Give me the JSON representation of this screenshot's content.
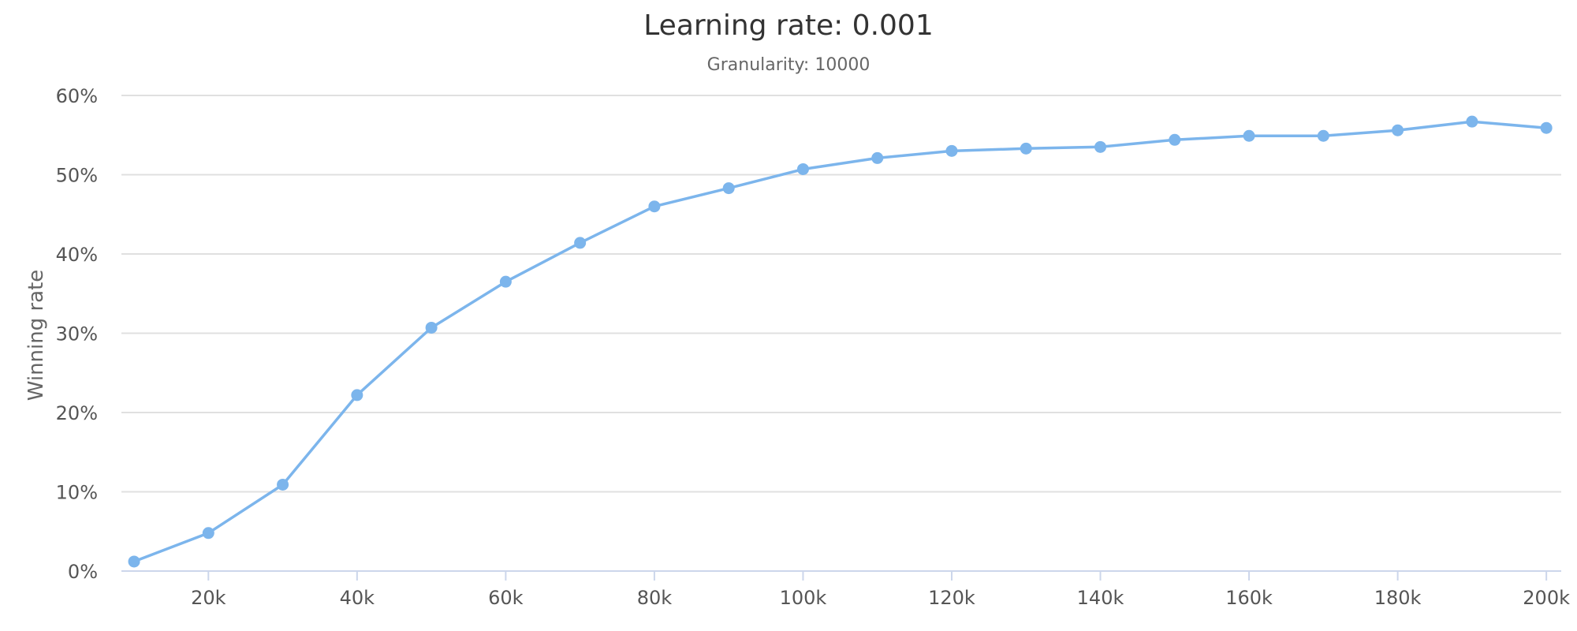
{
  "chart_data": {
    "type": "line",
    "title": "Learning rate: 0.001",
    "subtitle": "Granularity: 10000",
    "xlabel": "",
    "ylabel": "Winning rate",
    "x_tick_labels": [
      "20k",
      "40k",
      "60k",
      "80k",
      "100k",
      "120k",
      "140k",
      "160k",
      "180k",
      "200k"
    ],
    "x_ticks": [
      20000,
      40000,
      60000,
      80000,
      100000,
      120000,
      140000,
      160000,
      180000,
      200000
    ],
    "y_tick_labels": [
      "0%",
      "10%",
      "20%",
      "30%",
      "40%",
      "50%",
      "60%"
    ],
    "y_ticks": [
      0,
      10,
      20,
      30,
      40,
      50,
      60
    ],
    "xlim": [
      8300,
      202000
    ],
    "ylim": [
      0,
      60
    ],
    "grid": true,
    "legend": "none",
    "colors": {
      "series": "#7cb5ec",
      "grid": "#e0e0e0",
      "axis": "#ccd6eb"
    },
    "series": [
      {
        "x": [
          10000,
          20000,
          30000,
          40000,
          50000,
          60000,
          70000,
          80000,
          90000,
          100000,
          110000,
          120000,
          130000,
          140000,
          150000,
          160000,
          170000,
          180000,
          190000,
          200000
        ],
        "values": [
          1.2,
          4.8,
          10.9,
          22.2,
          30.7,
          36.5,
          41.4,
          46.0,
          48.3,
          50.7,
          52.1,
          53.0,
          53.3,
          53.5,
          54.4,
          54.9,
          54.9,
          55.6,
          56.7,
          55.9
        ]
      }
    ]
  }
}
